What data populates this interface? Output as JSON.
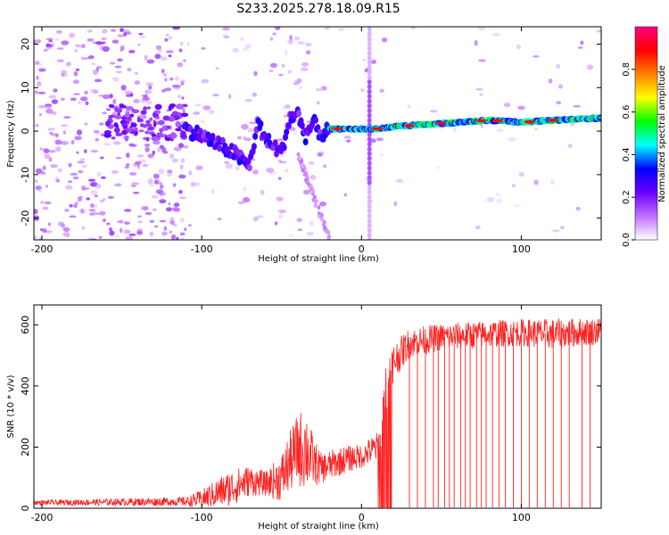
{
  "title": "S233.2025.278.18.09.R15",
  "chart_data": [
    {
      "type": "heatmap",
      "name": "spectrogram",
      "xlabel": "Height of straight line (km)",
      "ylabel": "Frequency (Hz)",
      "xlim": [
        -205,
        150
      ],
      "ylim": [
        -25,
        24
      ],
      "xticks": [
        -200,
        -100,
        0,
        100
      ],
      "yticks": [
        -20,
        -10,
        0,
        10,
        20
      ],
      "colorbar": {
        "label": "Normalized spectral amplitude",
        "range": [
          0,
          1
        ],
        "ticks": [
          0.0,
          0.2,
          0.4,
          0.6,
          0.8
        ],
        "tick_labels": [
          "0.0",
          "0.2",
          "0.4",
          "0.6",
          "0.8"
        ],
        "colors": [
          "#ffffff",
          "#c070ff",
          "#6a00ff",
          "#0000ff",
          "#00ffff",
          "#00ff00",
          "#ffff00",
          "#ff8000",
          "#ff0000",
          "#ff0080"
        ]
      },
      "ridge": {
        "x": [
          -110,
          -100,
          -90,
          -80,
          -70,
          -65,
          -60,
          -50,
          -45,
          -40,
          -35,
          -30,
          -25,
          -20,
          -10,
          0,
          10,
          20,
          40,
          60,
          80,
          100,
          120,
          150
        ],
        "y": [
          0.5,
          -1,
          -3,
          -5,
          -8,
          2,
          -2,
          -5,
          3,
          4,
          -1,
          2,
          -1,
          0.5,
          0.5,
          0.5,
          0.5,
          1,
          1.5,
          2,
          2.5,
          2,
          2.5,
          3
        ]
      }
    },
    {
      "type": "line",
      "name": "snr",
      "xlabel": "Height of straight line (km)",
      "ylabel": "SNR (10 * v/v)",
      "xlim": [
        -205,
        150
      ],
      "ylim": [
        0,
        665
      ],
      "xticks": [
        -200,
        -100,
        0,
        100
      ],
      "yticks": [
        0,
        200,
        400,
        600
      ],
      "color": "#ff2020",
      "envelope": {
        "x": [
          -205,
          -110,
          -100,
          -90,
          -80,
          -70,
          -60,
          -50,
          -45,
          -40,
          -35,
          -30,
          -25,
          -20,
          -10,
          0,
          10,
          13,
          15,
          18,
          20,
          30,
          50,
          80,
          100,
          120,
          150
        ],
        "base": [
          18,
          22,
          30,
          50,
          70,
          90,
          80,
          100,
          150,
          190,
          200,
          150,
          130,
          140,
          160,
          170,
          200,
          250,
          380,
          450,
          480,
          540,
          560,
          570,
          575,
          570,
          580
        ],
        "amp": [
          8,
          15,
          30,
          50,
          60,
          50,
          40,
          80,
          100,
          120,
          140,
          80,
          50,
          50,
          45,
          40,
          50,
          90,
          100,
          80,
          60,
          50,
          45,
          45,
          45,
          50,
          45
        ]
      },
      "dropout_x": [
        13,
        14,
        15,
        17,
        18,
        30,
        35,
        40,
        45,
        48,
        52,
        55,
        58,
        62,
        65,
        68,
        72,
        75,
        78,
        82,
        86,
        90,
        95,
        100,
        105,
        110,
        115,
        120,
        125,
        130,
        138,
        143
      ]
    }
  ]
}
